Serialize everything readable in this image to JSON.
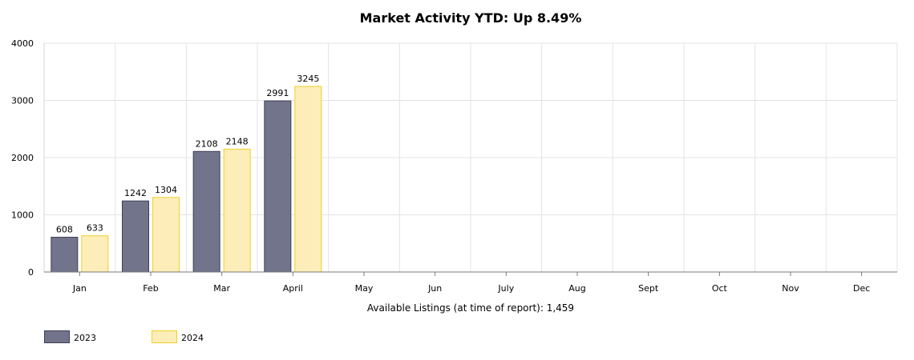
{
  "chart_data": {
    "type": "bar",
    "title": "Market Activity YTD: Up 8.49%",
    "xlabel": "Available Listings (at time of report): 1,459",
    "ylabel": "",
    "ylim": [
      0,
      4000
    ],
    "yticks": [
      0,
      1000,
      2000,
      3000,
      4000
    ],
    "grid": true,
    "legend_position": "bottom-left",
    "categories": [
      "Jan",
      "Feb",
      "Mar",
      "April",
      "May",
      "Jun",
      "July",
      "Aug",
      "Sept",
      "Oct",
      "Nov",
      "Dec"
    ],
    "series": [
      {
        "name": "2023",
        "color": "#72748c",
        "stroke": "#3d3f57",
        "values": [
          608,
          1242,
          2108,
          2991,
          null,
          null,
          null,
          null,
          null,
          null,
          null,
          null
        ]
      },
      {
        "name": "2024",
        "color": "#fdedb8",
        "stroke": "#f2cf2a",
        "values": [
          633,
          1304,
          2148,
          3245,
          null,
          null,
          null,
          null,
          null,
          null,
          null,
          null
        ]
      }
    ]
  }
}
